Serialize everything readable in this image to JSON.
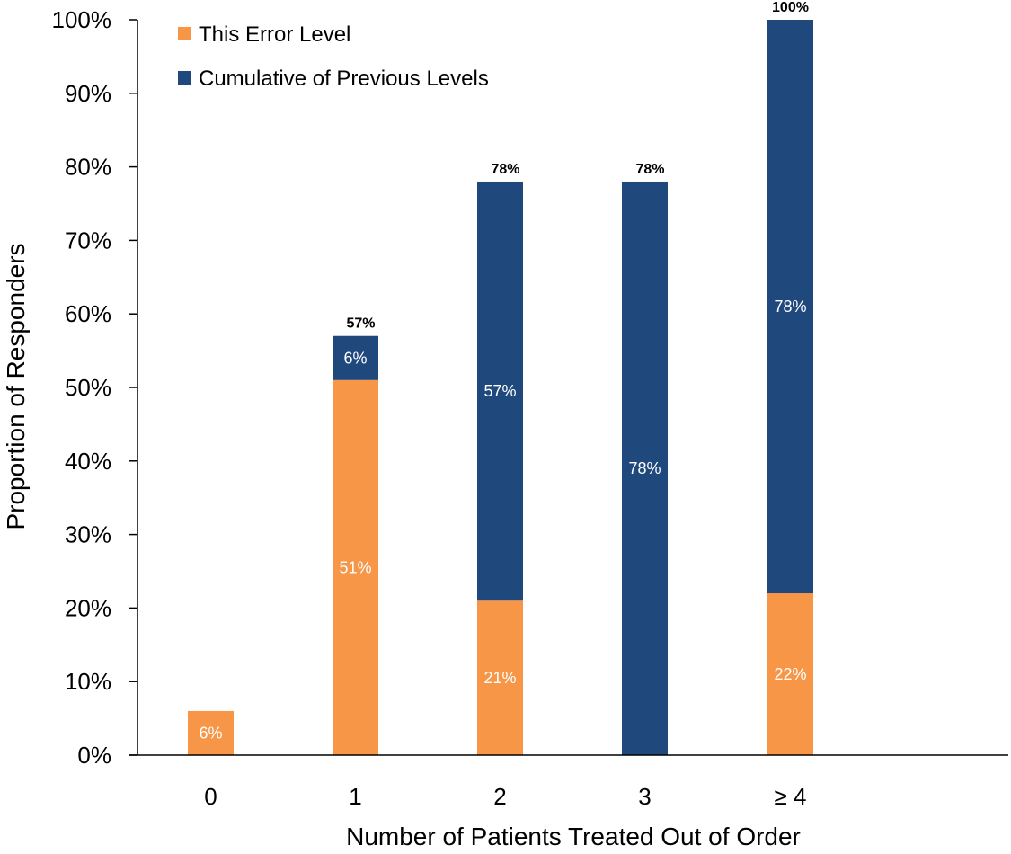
{
  "chart_data": {
    "type": "bar",
    "stacked": true,
    "title": "",
    "xlabel": "Number of Patients Treated Out of Order",
    "ylabel": "Proportion of Responders",
    "categories": [
      "0",
      "1",
      "2",
      "3",
      "≥ 4"
    ],
    "ylim": [
      0,
      100
    ],
    "yticks": [
      0,
      10,
      20,
      30,
      40,
      50,
      60,
      70,
      80,
      90,
      100
    ],
    "ytick_labels": [
      "0%",
      "10%",
      "20%",
      "30%",
      "40%",
      "50%",
      "60%",
      "70%",
      "80%",
      "90%",
      "100%"
    ],
    "grid": false,
    "legend_position": "top-left",
    "series": [
      {
        "name": "This Error Level",
        "color": "#F79646",
        "values": [
          6,
          51,
          21,
          0,
          22
        ],
        "labels": [
          "6%",
          "51%",
          "21%",
          "",
          "22%"
        ]
      },
      {
        "name": "Cumulative of Previous Levels",
        "color": "#1F497D",
        "values": [
          0,
          6,
          57,
          78,
          78
        ],
        "labels": [
          "",
          "6%",
          "57%",
          "78%",
          "78%"
        ]
      }
    ],
    "totals": [
      "",
      "57%",
      "78%",
      "78%",
      "100%"
    ]
  }
}
